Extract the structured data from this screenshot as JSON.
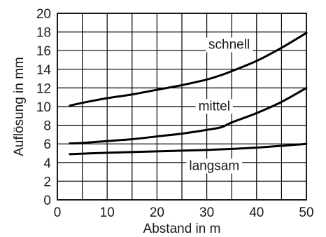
{
  "chart_data": {
    "type": "line",
    "title": "",
    "xlabel": "Abstand in m",
    "ylabel": "Auflösung in mm",
    "xlim": [
      0,
      50
    ],
    "ylim": [
      0,
      20
    ],
    "xticks": [
      "0",
      "10",
      "20",
      "30",
      "40",
      "50"
    ],
    "yticks": [
      "0",
      "2",
      "4",
      "6",
      "8",
      "10",
      "12",
      "14",
      "16",
      "18",
      "20"
    ],
    "grid": true,
    "legend": "inline labels",
    "series": [
      {
        "name": "schnell",
        "x": [
          2.5,
          5,
          10,
          15,
          20,
          25,
          30,
          33,
          35,
          40,
          45,
          50
        ],
        "y": [
          10.1,
          10.4,
          10.9,
          11.3,
          11.8,
          12.3,
          12.9,
          13.4,
          13.8,
          14.9,
          16.3,
          17.9
        ]
      },
      {
        "name": "mittel",
        "x": [
          2.5,
          5,
          10,
          15,
          20,
          25,
          30,
          33,
          35,
          40,
          45,
          50
        ],
        "y": [
          6.05,
          6.1,
          6.3,
          6.5,
          6.8,
          7.1,
          7.5,
          7.8,
          8.3,
          9.3,
          10.5,
          12.0
        ]
      },
      {
        "name": "langsam",
        "x": [
          2.5,
          10,
          20,
          30,
          40,
          50
        ],
        "y": [
          4.9,
          5.05,
          5.2,
          5.35,
          5.6,
          6.0
        ]
      }
    ],
    "annotations": [
      "schnell",
      "mittel",
      "langsam"
    ]
  }
}
